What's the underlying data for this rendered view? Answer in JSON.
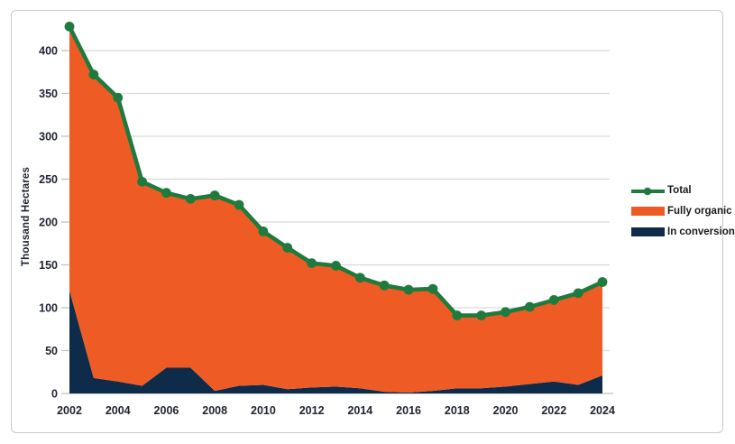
{
  "figure": {
    "background": "#FFFFFF",
    "border_color": "#C9C9C9"
  },
  "chart_data": {
    "type": "area",
    "title": "",
    "xlabel": "",
    "ylabel": "Thousand Hectares",
    "ylim": [
      0,
      450
    ],
    "y_ticks": [
      0,
      50,
      100,
      150,
      200,
      250,
      300,
      350,
      400
    ],
    "grid": true,
    "legend_position": "right",
    "years": [
      2002,
      2003,
      2004,
      2005,
      2006,
      2007,
      2008,
      2009,
      2010,
      2011,
      2012,
      2013,
      2014,
      2015,
      2016,
      2017,
      2018,
      2019,
      2020,
      2021,
      2022,
      2023,
      2024
    ],
    "x_tick_labels": [
      "2002",
      "2004",
      "2006",
      "2008",
      "2010",
      "2012",
      "2014",
      "2016",
      "2018",
      "2020",
      "2022",
      "2024"
    ],
    "series": [
      {
        "name": "Total",
        "type": "line",
        "marker": "circle",
        "color": "#1F7B3D",
        "values": [
          428,
          372,
          345,
          247,
          234,
          227,
          231,
          220,
          189,
          170,
          152,
          149,
          135,
          126,
          121,
          122,
          91,
          91,
          95,
          101,
          109,
          117,
          130
        ]
      },
      {
        "name": "Fully organic",
        "type": "area",
        "stack_index": 1,
        "color": "#EE5B25",
        "values": [
          308,
          354,
          331,
          238,
          204,
          197,
          228,
          211,
          179,
          165,
          145,
          141,
          129,
          124,
          120,
          119,
          85,
          85,
          87,
          90,
          95,
          107,
          109
        ]
      },
      {
        "name": "In conversion",
        "type": "area",
        "stack_index": 0,
        "color": "#0E2B4A",
        "values": [
          120,
          18,
          14,
          9,
          30,
          30,
          3,
          9,
          10,
          5,
          7,
          8,
          6,
          2,
          1,
          3,
          6,
          6,
          8,
          11,
          14,
          10,
          21
        ]
      }
    ],
    "axis_colors": {
      "grid": "#D9D9D9",
      "tick": "#BFBFBF",
      "label": "#1F2430"
    }
  }
}
